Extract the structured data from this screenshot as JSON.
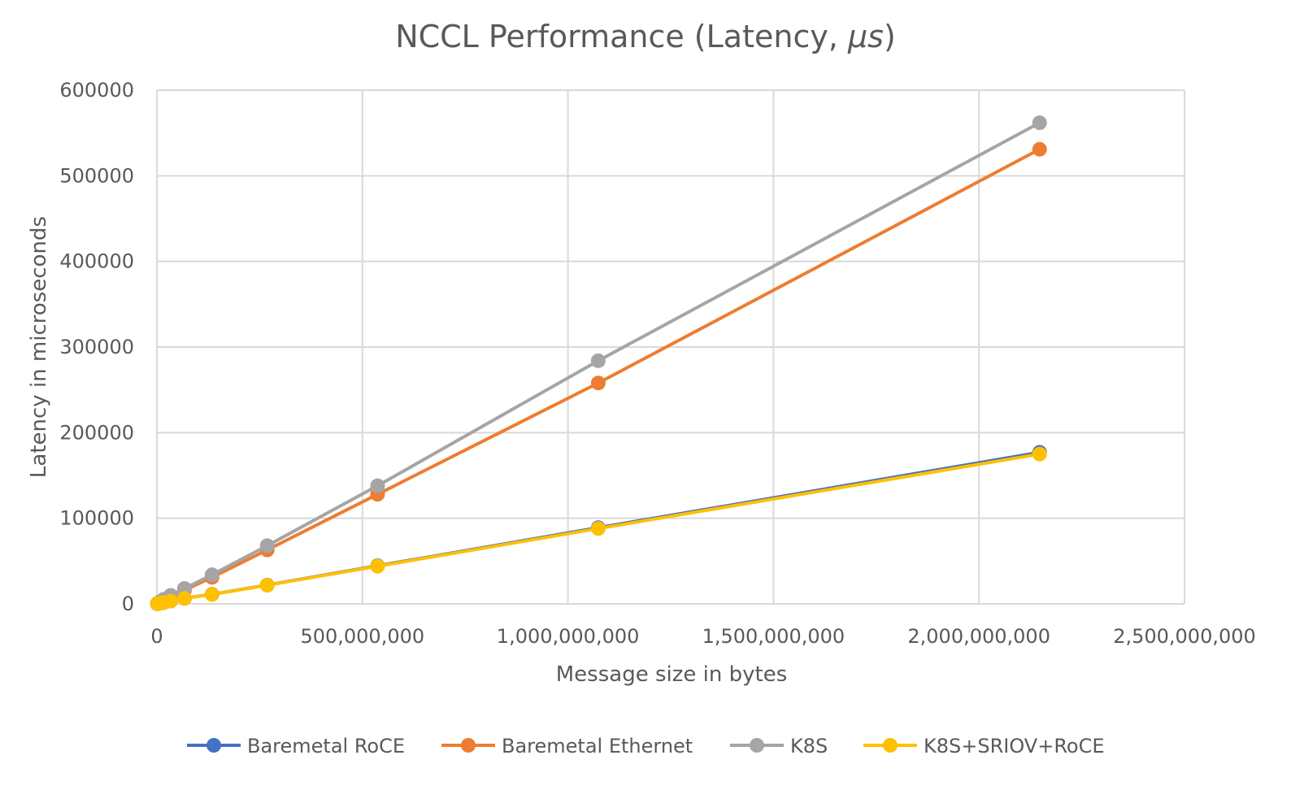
{
  "chart_data": {
    "type": "line",
    "title": "NCCL Performance (Latency, μs)",
    "title_main": "NCCL Performance (Latency, ",
    "title_unit": "μs",
    "title_close": ")",
    "xlabel": "Message size in bytes",
    "ylabel": "Latency  in microseconds",
    "xlim": [
      0,
      2500000000
    ],
    "ylim": [
      0,
      600000
    ],
    "x_ticks": [
      0,
      500000000,
      1000000000,
      1500000000,
      2000000000,
      2500000000
    ],
    "x_tick_labels": [
      "0",
      "500,000,000",
      "1,000,000,000",
      "1,500,000,000",
      "2,000,000,000",
      "2,500,000,000"
    ],
    "y_ticks": [
      0,
      100000,
      200000,
      300000,
      400000,
      500000,
      600000
    ],
    "y_tick_labels": [
      "0",
      "100000",
      "200000",
      "300000",
      "400000",
      "500000",
      "600000"
    ],
    "grid": true,
    "legend_position": "bottom",
    "x": [
      1048576,
      2097152,
      4194304,
      8388608,
      16777216,
      33554432,
      67108864,
      134217728,
      268435456,
      536870912,
      1073741824,
      2147483648
    ],
    "series": [
      {
        "name": "Baremetal RoCE",
        "color": "#4472C4",
        "values": [
          120,
          220,
          420,
          830,
          1650,
          3300,
          6600,
          11200,
          22000,
          44500,
          89000,
          177000
        ]
      },
      {
        "name": "Baremetal Ethernet",
        "color": "#ED7D31",
        "values": [
          300,
          600,
          1200,
          2400,
          4800,
          8500,
          16000,
          31000,
          63000,
          128000,
          258000,
          531000
        ]
      },
      {
        "name": "K8S",
        "color": "#A5A5A5",
        "values": [
          350,
          700,
          1400,
          2800,
          5500,
          10000,
          18000,
          34000,
          68000,
          138000,
          284000,
          562000
        ]
      },
      {
        "name": "K8S+SRIOV+RoCE",
        "color": "#FFC000",
        "values": [
          110,
          210,
          410,
          820,
          1600,
          3200,
          6400,
          11000,
          21800,
          44000,
          88000,
          175000
        ]
      }
    ]
  }
}
